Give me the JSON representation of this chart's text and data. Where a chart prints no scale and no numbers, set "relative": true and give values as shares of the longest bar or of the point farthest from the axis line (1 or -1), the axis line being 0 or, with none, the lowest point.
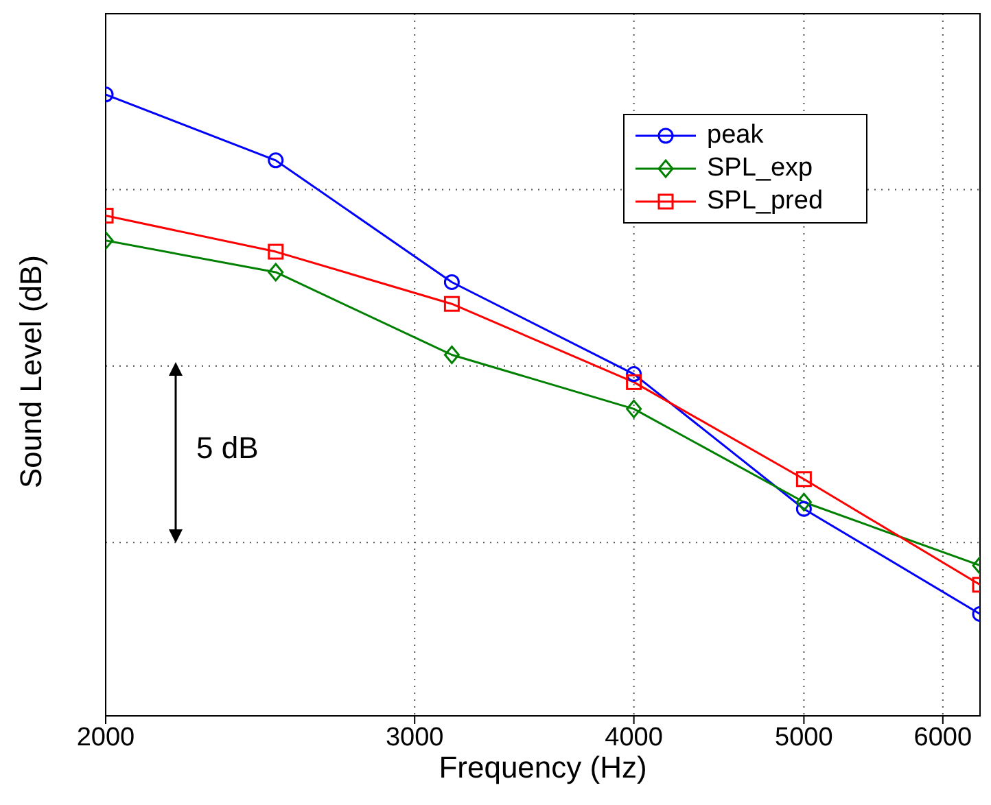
{
  "chart_data": {
    "type": "line",
    "xlabel": "Frequency (Hz)",
    "ylabel": "Sound Level (dB)",
    "relative": true,
    "log": "x",
    "x": [
      2000,
      2500,
      3150,
      4000,
      5000,
      6300
    ],
    "xlim": [
      2000,
      6300
    ],
    "xticks": [
      2000,
      3000,
      4000,
      5000,
      6000
    ],
    "series": [
      {
        "name": "peak",
        "color": "#0000ff",
        "marker": "circle",
        "values": [
          1,
          0.894,
          0.698,
          0.55,
          0.333,
          0.164
        ]
      },
      {
        "name": "SPL_exp",
        "color": "#008000",
        "marker": "diamond",
        "values": [
          0.765,
          0.714,
          0.581,
          0.494,
          0.344,
          0.242
        ]
      },
      {
        "name": "SPL_pred",
        "color": "#ff0000",
        "marker": "square",
        "values": [
          0.805,
          0.747,
          0.663,
          0.537,
          0.381,
          0.211
        ]
      }
    ],
    "annotations": [
      "5 dB"
    ],
    "grid": true,
    "legend": "top right",
    "line_style": "solid"
  }
}
